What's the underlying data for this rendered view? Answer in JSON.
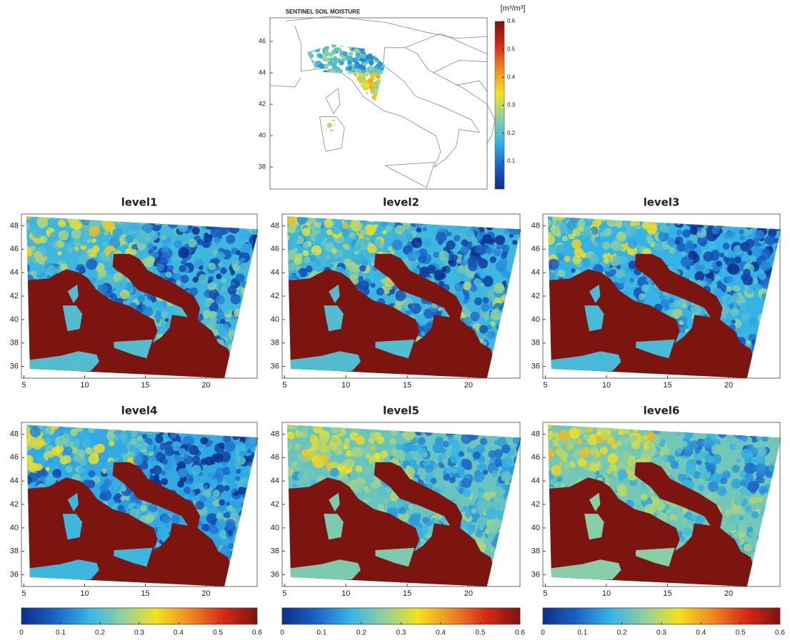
{
  "top_map": {
    "title": "SENTINEL SOIL MOISTURE",
    "colorbar_label": "[m³/m³]",
    "xlim": [
      5,
      19
    ],
    "ylim": [
      36.6,
      47.5
    ],
    "yticks": [
      38,
      40,
      42,
      44,
      46
    ],
    "colorbar": {
      "lim": [
        0,
        0.6
      ],
      "ticks": [
        0.1,
        0.2,
        0.3,
        0.4,
        0.5,
        0.6
      ]
    }
  },
  "panels": [
    {
      "title": "level1"
    },
    {
      "title": "level2"
    },
    {
      "title": "level3"
    },
    {
      "title": "level4"
    },
    {
      "title": "level5"
    },
    {
      "title": "level6"
    }
  ],
  "panel_axes": {
    "xlim": [
      4.8,
      24.2
    ],
    "ylim": [
      35,
      49
    ],
    "xticks": [
      5,
      10,
      15,
      20
    ],
    "yticks": [
      36,
      38,
      40,
      42,
      44,
      46,
      48
    ]
  },
  "colorbars": {
    "lim": [
      0,
      0.6
    ],
    "ticks": [
      0,
      0.1,
      0.2,
      0.3,
      0.4,
      0.5,
      0.6
    ]
  },
  "colormap": [
    "#0b2f8a",
    "#1a62c8",
    "#35b4e6",
    "#8fd0a0",
    "#f2e21e",
    "#f08a22",
    "#d52a14",
    "#7c1410"
  ],
  "sea_color": "#7c1410"
}
